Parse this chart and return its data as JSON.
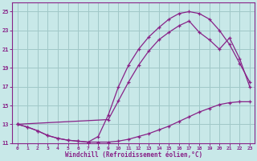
{
  "xlabel": "Windchill (Refroidissement éolien,°C)",
  "xlim": [
    -0.5,
    23.5
  ],
  "ylim": [
    11,
    26
  ],
  "yticks": [
    11,
    13,
    15,
    17,
    19,
    21,
    23,
    25
  ],
  "xticks": [
    0,
    1,
    2,
    3,
    4,
    5,
    6,
    7,
    8,
    9,
    10,
    11,
    12,
    13,
    14,
    15,
    16,
    17,
    18,
    19,
    20,
    21,
    22,
    23
  ],
  "background_color": "#c8e8e8",
  "grid_color": "#a0c8c8",
  "line_color": "#882288",
  "curve1_x": [
    0,
    1,
    2,
    3,
    4,
    5,
    6,
    7,
    8,
    9,
    10,
    11,
    12,
    13,
    14,
    15,
    16,
    17,
    18,
    19,
    20,
    21,
    22,
    23
  ],
  "curve1_y": [
    13.0,
    12.7,
    12.3,
    11.8,
    11.5,
    11.3,
    11.2,
    11.1,
    11.1,
    11.1,
    11.2,
    11.4,
    11.7,
    12.0,
    12.4,
    12.8,
    13.3,
    13.8,
    14.3,
    14.7,
    15.1,
    15.3,
    15.4,
    15.4
  ],
  "curve2_x": [
    0,
    1,
    2,
    3,
    4,
    5,
    6,
    7,
    8,
    9,
    10,
    11,
    12,
    13,
    14,
    15,
    16,
    17,
    18,
    19,
    20,
    21,
    22,
    23
  ],
  "curve2_y": [
    13.0,
    12.7,
    12.3,
    11.8,
    11.5,
    11.3,
    11.2,
    11.1,
    11.7,
    14.0,
    17.0,
    19.3,
    21.0,
    22.3,
    23.3,
    24.2,
    24.8,
    25.0,
    24.8,
    24.2,
    23.0,
    21.5,
    19.5,
    17.5
  ],
  "curve3_x": [
    0,
    9,
    10,
    11,
    12,
    13,
    14,
    15,
    16,
    17,
    18,
    19,
    20,
    21,
    22,
    23
  ],
  "curve3_y": [
    13.0,
    13.5,
    15.5,
    17.5,
    19.3,
    20.8,
    22.0,
    22.8,
    23.5,
    24.0,
    22.8,
    22.0,
    21.0,
    22.2,
    20.0,
    17.0
  ]
}
